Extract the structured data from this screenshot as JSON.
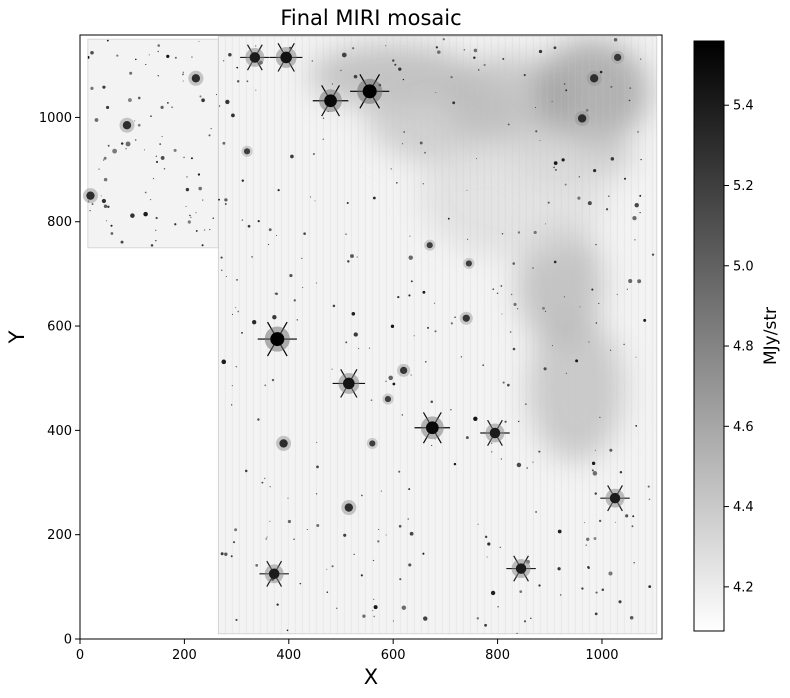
{
  "chart_data": {
    "type": "heatmap",
    "title": "Final MIRI mosaic",
    "xlabel": "X",
    "ylabel": "Y",
    "xlim": [
      0,
      1115
    ],
    "ylim": [
      0,
      1158
    ],
    "xticks": [
      0,
      200,
      400,
      600,
      800,
      1000
    ],
    "yticks": [
      0,
      200,
      400,
      600,
      800,
      1000
    ],
    "colorbar": {
      "label": "MJy/str",
      "range": [
        4.09,
        5.56
      ],
      "ticks": [
        "4.2",
        "4.4",
        "4.6",
        "4.8",
        "5.0",
        "5.2",
        "5.4"
      ],
      "colormap": "Greys",
      "low_color": "#ffffff",
      "high_color": "#000000"
    },
    "footprint": {
      "main_region": {
        "x": [
          265,
          1105
        ],
        "y": [
          10,
          1155
        ]
      },
      "upper_left_region": {
        "x": [
          15,
          265
        ],
        "y": [
          750,
          1150
        ]
      },
      "empty_region": {
        "x": [
          0,
          265
        ],
        "y": [
          0,
          750
        ]
      }
    },
    "bright_sources": [
      {
        "x": 378,
        "y": 575,
        "value": 5.56
      },
      {
        "x": 555,
        "y": 1050,
        "value": 5.56
      },
      {
        "x": 480,
        "y": 1032,
        "value": 5.5
      },
      {
        "x": 675,
        "y": 405,
        "value": 5.5
      },
      {
        "x": 515,
        "y": 490,
        "value": 5.45
      },
      {
        "x": 795,
        "y": 395,
        "value": 5.4
      },
      {
        "x": 1025,
        "y": 270,
        "value": 5.4
      },
      {
        "x": 845,
        "y": 135,
        "value": 5.4
      },
      {
        "x": 372,
        "y": 125,
        "value": 5.4
      },
      {
        "x": 395,
        "y": 1115,
        "value": 5.45
      },
      {
        "x": 335,
        "y": 1115,
        "value": 5.4
      },
      {
        "x": 515,
        "y": 252,
        "value": 5.3
      },
      {
        "x": 222,
        "y": 1075,
        "value": 5.3
      },
      {
        "x": 90,
        "y": 985,
        "value": 5.3
      },
      {
        "x": 320,
        "y": 935,
        "value": 5.2
      },
      {
        "x": 20,
        "y": 850,
        "value": 5.3
      },
      {
        "x": 962,
        "y": 998,
        "value": 5.3
      },
      {
        "x": 1030,
        "y": 1115,
        "value": 5.25
      },
      {
        "x": 985,
        "y": 1075,
        "value": 5.3
      },
      {
        "x": 620,
        "y": 515,
        "value": 5.25
      },
      {
        "x": 740,
        "y": 615,
        "value": 5.25
      },
      {
        "x": 560,
        "y": 375,
        "value": 5.2
      },
      {
        "x": 590,
        "y": 460,
        "value": 5.2
      },
      {
        "x": 390,
        "y": 375,
        "value": 5.3
      },
      {
        "x": 745,
        "y": 720,
        "value": 5.2
      },
      {
        "x": 670,
        "y": 755,
        "value": 5.2
      }
    ],
    "diffuse_emission": [
      {
        "x": 600,
        "y": 1080,
        "rx": 160,
        "ry": 60,
        "value": 4.55
      },
      {
        "x": 700,
        "y": 1000,
        "rx": 150,
        "ry": 90,
        "value": 4.45
      },
      {
        "x": 820,
        "y": 1030,
        "rx": 120,
        "ry": 90,
        "value": 4.5
      },
      {
        "x": 980,
        "y": 1050,
        "rx": 110,
        "ry": 100,
        "value": 4.7
      },
      {
        "x": 940,
        "y": 930,
        "rx": 120,
        "ry": 60,
        "value": 4.45
      },
      {
        "x": 920,
        "y": 680,
        "rx": 80,
        "ry": 120,
        "value": 4.55
      },
      {
        "x": 950,
        "y": 480,
        "rx": 90,
        "ry": 140,
        "value": 4.5
      },
      {
        "x": 830,
        "y": 850,
        "rx": 180,
        "ry": 120,
        "value": 4.3
      }
    ]
  }
}
